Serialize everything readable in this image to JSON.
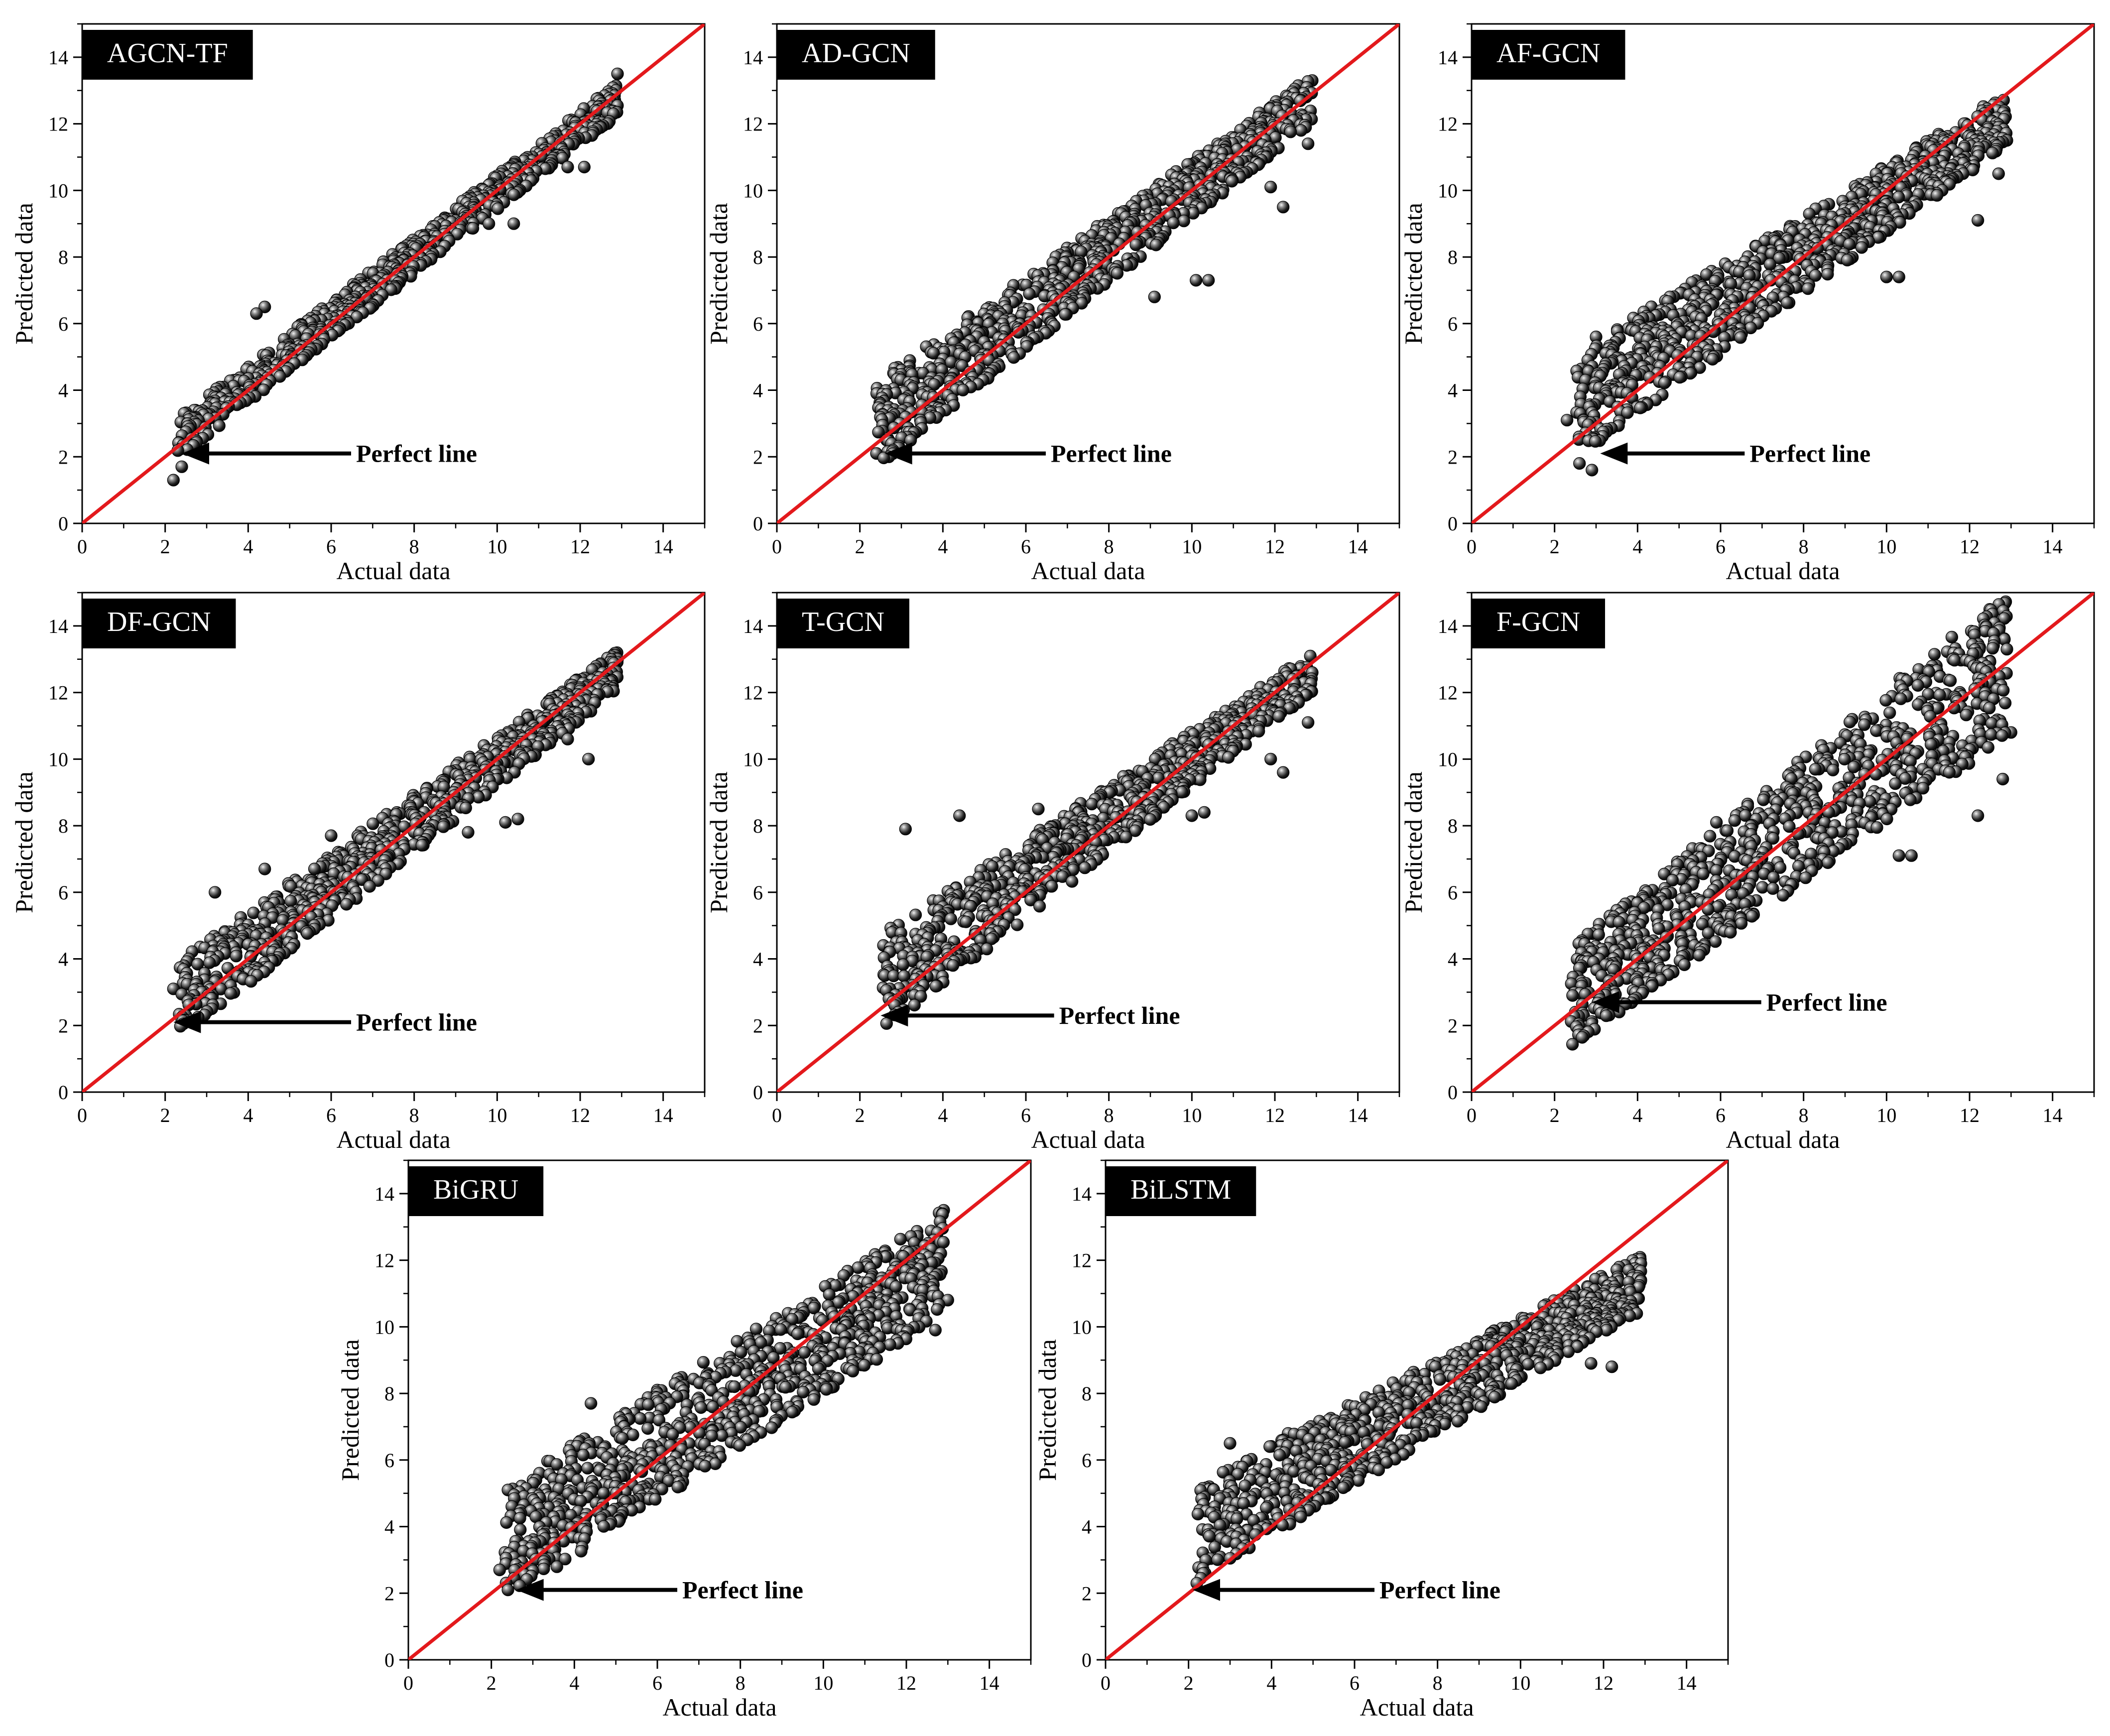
{
  "chart_data": [
    {
      "type": "scatter",
      "title": "AGCN-TF",
      "xlabel": "Actual data",
      "ylabel": "Predicted data",
      "xlim": [
        0,
        15
      ],
      "ylim": [
        0,
        15
      ],
      "xticks": [
        0,
        2,
        4,
        6,
        8,
        10,
        12,
        14
      ],
      "yticks": [
        0,
        2,
        4,
        6,
        8,
        10,
        12,
        14
      ],
      "perfect_line": {
        "from": [
          0,
          0
        ],
        "to": [
          15,
          15
        ],
        "color": "#e3191c"
      },
      "annotation": {
        "text": "Perfect line",
        "text_at": [
          6.6,
          2.1
        ],
        "arrow_to": [
          2.4,
          2.1
        ]
      },
      "cloud": {
        "x_range": [
          2.3,
          12.9
        ],
        "slope": 0.96,
        "intercept": 0.35,
        "spread_low": 0.6,
        "spread_high": 0.5,
        "count": 700,
        "seed": 11
      },
      "outliers": [
        [
          2.2,
          1.3
        ],
        [
          2.4,
          1.7
        ],
        [
          4.4,
          6.5
        ],
        [
          12.1,
          10.7
        ],
        [
          11.7,
          10.7
        ],
        [
          12.8,
          12.3
        ],
        [
          12.9,
          13.5
        ],
        [
          9.8,
          9.0
        ],
        [
          10.4,
          9.0
        ],
        [
          4.2,
          6.3
        ],
        [
          2.7,
          3.4
        ]
      ]
    },
    {
      "type": "scatter",
      "title": "AD-GCN",
      "xlabel": "Actual data",
      "ylabel": "Predicted data",
      "xlim": [
        0,
        15
      ],
      "ylim": [
        0,
        15
      ],
      "xticks": [
        0,
        2,
        4,
        6,
        8,
        10,
        12,
        14
      ],
      "yticks": [
        0,
        2,
        4,
        6,
        8,
        10,
        12,
        14
      ],
      "perfect_line": {
        "from": [
          0,
          0
        ],
        "to": [
          15,
          15
        ],
        "color": "#e3191c"
      },
      "annotation": {
        "text": "Perfect line",
        "text_at": [
          6.6,
          2.1
        ],
        "arrow_to": [
          2.6,
          2.1
        ]
      },
      "cloud": {
        "x_range": [
          2.4,
          12.9
        ],
        "slope": 0.93,
        "intercept": 0.75,
        "spread_low": 1.3,
        "spread_high": 0.7,
        "count": 780,
        "seed": 23
      },
      "outliers": [
        [
          2.4,
          2.1
        ],
        [
          2.7,
          2.0
        ],
        [
          2.8,
          2.2
        ],
        [
          12.2,
          9.5
        ],
        [
          12.8,
          11.4
        ],
        [
          11.9,
          10.1
        ],
        [
          10.1,
          7.3
        ],
        [
          10.4,
          7.3
        ],
        [
          9.1,
          6.8
        ],
        [
          2.5,
          3.6
        ],
        [
          3.0,
          4.6
        ],
        [
          12.9,
          13.3
        ]
      ]
    },
    {
      "type": "scatter",
      "title": "AF-GCN",
      "xlabel": "Actual data",
      "ylabel": "Predicted data",
      "xlim": [
        0,
        15
      ],
      "ylim": [
        0,
        15
      ],
      "xticks": [
        0,
        2,
        4,
        6,
        8,
        10,
        12,
        14
      ],
      "yticks": [
        0,
        2,
        4,
        6,
        8,
        10,
        12,
        14
      ],
      "perfect_line": {
        "from": [
          0,
          0
        ],
        "to": [
          15,
          15
        ],
        "color": "#e3191c"
      },
      "annotation": {
        "text": "Perfect line",
        "text_at": [
          6.7,
          2.1
        ],
        "arrow_to": [
          3.1,
          2.1
        ]
      },
      "cloud": {
        "x_range": [
          2.5,
          12.9
        ],
        "slope": 0.83,
        "intercept": 1.45,
        "spread_low": 1.6,
        "spread_high": 0.8,
        "count": 820,
        "seed": 37
      },
      "outliers": [
        [
          2.3,
          3.1
        ],
        [
          2.6,
          1.8
        ],
        [
          2.9,
          1.6
        ],
        [
          2.8,
          4.9
        ],
        [
          12.2,
          9.1
        ],
        [
          12.7,
          10.5
        ],
        [
          10.0,
          7.4
        ],
        [
          10.3,
          7.4
        ],
        [
          11.5,
          10.3
        ],
        [
          3.0,
          5.6
        ],
        [
          12.9,
          11.5
        ],
        [
          12.7,
          11.9
        ]
      ]
    },
    {
      "type": "scatter",
      "title": "DF-GCN",
      "xlabel": "Actual data",
      "ylabel": "Predicted data",
      "xlim": [
        0,
        15
      ],
      "ylim": [
        0,
        15
      ],
      "xticks": [
        0,
        2,
        4,
        6,
        8,
        10,
        12,
        14
      ],
      "yticks": [
        0,
        2,
        4,
        6,
        8,
        10,
        12,
        14
      ],
      "perfect_line": {
        "from": [
          0,
          0
        ],
        "to": [
          15,
          15
        ],
        "color": "#e3191c"
      },
      "annotation": {
        "text": "Perfect line",
        "text_at": [
          6.6,
          2.1
        ],
        "arrow_to": [
          2.2,
          2.1
        ]
      },
      "cloud": {
        "x_range": [
          2.3,
          12.9
        ],
        "slope": 0.94,
        "intercept": 0.55,
        "spread_low": 1.2,
        "spread_high": 0.6,
        "count": 760,
        "seed": 41
      },
      "outliers": [
        [
          2.2,
          3.1
        ],
        [
          2.6,
          2.8
        ],
        [
          4.4,
          6.7
        ],
        [
          6.0,
          7.7
        ],
        [
          12.2,
          10.0
        ],
        [
          11.7,
          10.6
        ],
        [
          10.2,
          8.1
        ],
        [
          10.5,
          8.2
        ],
        [
          9.3,
          7.8
        ],
        [
          12.9,
          13.0
        ],
        [
          3.2,
          6.0
        ]
      ]
    },
    {
      "type": "scatter",
      "title": "T-GCN",
      "xlabel": "Actual data",
      "ylabel": "Predicted data",
      "xlim": [
        0,
        15
      ],
      "ylim": [
        0,
        15
      ],
      "xticks": [
        0,
        2,
        4,
        6,
        8,
        10,
        12,
        14
      ],
      "yticks": [
        0,
        2,
        4,
        6,
        8,
        10,
        12,
        14
      ],
      "perfect_line": {
        "from": [
          0,
          0
        ],
        "to": [
          15,
          15
        ],
        "color": "#e3191c"
      },
      "annotation": {
        "text": "Perfect line",
        "text_at": [
          6.8,
          2.3
        ],
        "arrow_to": [
          2.5,
          2.3
        ]
      },
      "cloud": {
        "x_range": [
          2.5,
          12.9
        ],
        "slope": 0.9,
        "intercept": 1.0,
        "spread_low": 1.5,
        "spread_high": 0.6,
        "count": 760,
        "seed": 53
      },
      "outliers": [
        [
          3.1,
          7.9
        ],
        [
          4.4,
          8.3
        ],
        [
          6.3,
          8.5
        ],
        [
          7.8,
          9.0
        ],
        [
          12.2,
          9.6
        ],
        [
          12.8,
          11.1
        ],
        [
          11.9,
          10.0
        ],
        [
          10.3,
          8.4
        ],
        [
          10.0,
          8.3
        ],
        [
          2.6,
          3.5
        ],
        [
          2.7,
          2.8
        ],
        [
          12.9,
          12.6
        ]
      ]
    },
    {
      "type": "scatter",
      "title": "F-GCN",
      "xlabel": "Actual data",
      "ylabel": "Predicted data",
      "xlim": [
        0,
        15
      ],
      "ylim": [
        0,
        15
      ],
      "xticks": [
        0,
        2,
        4,
        6,
        8,
        10,
        12,
        14
      ],
      "yticks": [
        0,
        2,
        4,
        6,
        8,
        10,
        12,
        14
      ],
      "perfect_line": {
        "from": [
          0,
          0
        ],
        "to": [
          15,
          15
        ],
        "color": "#e3191c"
      },
      "annotation": {
        "text": "Perfect line",
        "text_at": [
          7.1,
          2.7
        ],
        "arrow_to": [
          2.9,
          2.7
        ]
      },
      "cloud": {
        "x_range": [
          2.4,
          12.9
        ],
        "slope": 0.95,
        "intercept": 0.6,
        "spread_low": 1.5,
        "spread_high": 2.2,
        "count": 820,
        "seed": 67
      },
      "outliers": [
        [
          2.5,
          2.4
        ],
        [
          2.7,
          2.3
        ],
        [
          12.9,
          13.3
        ],
        [
          13.0,
          10.8
        ],
        [
          12.8,
          9.4
        ],
        [
          12.2,
          8.3
        ],
        [
          10.3,
          7.1
        ],
        [
          10.6,
          7.1
        ],
        [
          11.2,
          12.8
        ],
        [
          12.1,
          12.8
        ],
        [
          5.9,
          8.1
        ],
        [
          9.1,
          9.0
        ]
      ]
    },
    {
      "type": "scatter",
      "title": "BiGRU",
      "xlabel": "Actual data",
      "ylabel": "Predicted data",
      "xlim": [
        0,
        15
      ],
      "ylim": [
        0,
        15
      ],
      "xticks": [
        0,
        2,
        4,
        6,
        8,
        10,
        12,
        14
      ],
      "yticks": [
        0,
        2,
        4,
        6,
        8,
        10,
        12,
        14
      ],
      "perfect_line": {
        "from": [
          0,
          0
        ],
        "to": [
          15,
          15
        ],
        "color": "#e3191c"
      },
      "annotation": {
        "text": "Perfect line",
        "text_at": [
          6.6,
          2.1
        ],
        "arrow_to": [
          2.6,
          2.1
        ]
      },
      "cloud": {
        "x_range": [
          2.3,
          12.9
        ],
        "slope": 0.8,
        "intercept": 1.6,
        "spread_low": 1.7,
        "spread_high": 1.6,
        "count": 840,
        "seed": 79
      },
      "outliers": [
        [
          2.2,
          2.7
        ],
        [
          2.4,
          2.1
        ],
        [
          4.4,
          7.7
        ],
        [
          12.9,
          13.5
        ],
        [
          13.0,
          10.8
        ],
        [
          12.7,
          9.9
        ],
        [
          11.5,
          12.1
        ],
        [
          2.4,
          5.1
        ],
        [
          6.0,
          8.1
        ],
        [
          12.4,
          11.5
        ]
      ]
    },
    {
      "type": "scatter",
      "title": "BiLSTM",
      "xlabel": "Actual data",
      "ylabel": "Predicted data",
      "xlim": [
        0,
        15
      ],
      "ylim": [
        0,
        15
      ],
      "xticks": [
        0,
        2,
        4,
        6,
        8,
        10,
        12,
        14
      ],
      "yticks": [
        0,
        2,
        4,
        6,
        8,
        10,
        12,
        14
      ],
      "perfect_line": {
        "from": [
          0,
          0
        ],
        "to": [
          15,
          15
        ],
        "color": "#e3191c"
      },
      "annotation": {
        "text": "Perfect line",
        "text_at": [
          6.6,
          2.1
        ],
        "arrow_to": [
          2.1,
          2.1
        ]
      },
      "cloud": {
        "x_range": [
          2.2,
          12.9
        ],
        "slope": 0.7,
        "intercept": 2.3,
        "spread_low": 1.5,
        "spread_high": 0.8,
        "count": 820,
        "seed": 97
      },
      "outliers": [
        [
          2.2,
          2.3
        ],
        [
          2.4,
          2.6
        ],
        [
          2.5,
          5.2
        ],
        [
          12.9,
          11.9
        ],
        [
          12.9,
          11.4
        ],
        [
          12.8,
          10.4
        ],
        [
          12.2,
          8.8
        ],
        [
          11.7,
          8.9
        ],
        [
          3.0,
          6.5
        ],
        [
          4.4,
          6.8
        ]
      ]
    }
  ]
}
